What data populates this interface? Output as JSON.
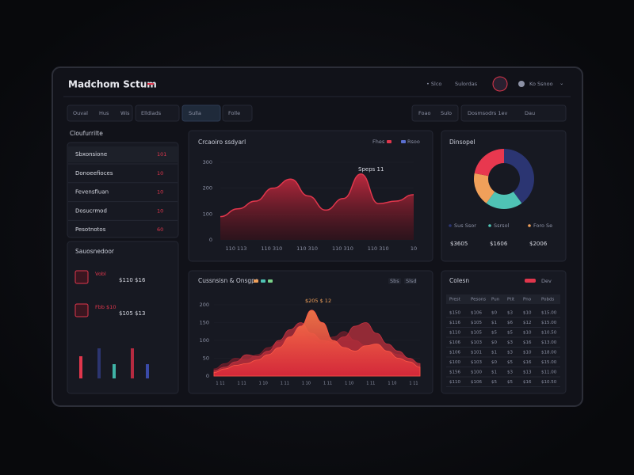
{
  "header": {
    "title": "Madchom Sctum",
    "nav": [
      "• Slco",
      "Sulordas"
    ],
    "user": "Ko Ssnoo"
  },
  "toolbar": {
    "tabs": [
      "Ouval",
      "Hus",
      "Wis",
      "Elldiads",
      "Sulla",
      "Folle"
    ],
    "right": [
      "Foao",
      "Sulo",
      "Dosmsodrs 1ev",
      "Dau"
    ]
  },
  "sidebar": {
    "title": "Cloufurrilte",
    "list": [
      {
        "label": "Sbxonsione",
        "value": "101"
      },
      {
        "label": "Donoeefioces",
        "value": "10"
      },
      {
        "label": "Fevensfiuan",
        "value": "10"
      },
      {
        "label": "Dosucrmod",
        "value": "10"
      },
      {
        "label": "Pesotnotos",
        "value": "60"
      }
    ],
    "panel_title": "Sauosnedoor",
    "items": [
      {
        "label": "Vobl",
        "value": "$110 $16"
      },
      {
        "label": "Fbb $10",
        "value": "$105 $13"
      }
    ],
    "bars": {
      "values": [
        28,
        38,
        18,
        38,
        18
      ],
      "colors": [
        "#e0364c",
        "#2c3570",
        "#3fb3a6",
        "#b52a40",
        "#3a4aa8"
      ],
      "ylim": [
        0,
        40
      ]
    }
  },
  "line_chart": {
    "type": "area",
    "title": "Crcaoiro ssdyarl",
    "legend": [
      {
        "name": "Fhes",
        "color": "#e0364c"
      },
      {
        "name": "Rsoo",
        "color": "#5a6fd0"
      }
    ],
    "annotation": "Speps 11",
    "categories": [
      "110 113",
      "110 310",
      "110 310",
      "110 310",
      "110 310",
      "10"
    ],
    "values": [
      90,
      120,
      150,
      200,
      235,
      170,
      115,
      160,
      255,
      140,
      150,
      175
    ],
    "ylim": [
      0,
      300
    ],
    "yticks": [
      0,
      100,
      200,
      300
    ],
    "color": "#e0364c"
  },
  "donut": {
    "type": "pie",
    "title": "Dinsopel",
    "values": [
      40,
      20,
      18,
      22
    ],
    "colors": [
      "#2b3572",
      "#4fc3b5",
      "#f0a05a",
      "#e8384f"
    ],
    "legend": [
      {
        "label": "Sus Ssor",
        "value": "$3605"
      },
      {
        "label": "Ssrsol",
        "value": "$1606"
      },
      {
        "label": "Foro Se",
        "value": "$2006"
      }
    ]
  },
  "area_chart": {
    "type": "area",
    "title": "Cussnsisn & Onsgps",
    "legend_colors": [
      "#f0a05a",
      "#4fc3b5",
      "#7bd389"
    ],
    "right_labels": [
      "Sbs",
      "Slsd"
    ],
    "annotation": "$205 $ 12",
    "categories": [
      "1 11",
      "1 11",
      "1 10",
      "1 11",
      "1 10",
      "1 11",
      "1 10",
      "1 11",
      "1 10",
      "1 11"
    ],
    "ylim": [
      0,
      200
    ],
    "yticks": [
      0,
      50,
      100,
      150,
      200
    ],
    "series": [
      {
        "color": "#7a1f2c",
        "values": [
          20,
          35,
          50,
          45,
          60,
          80,
          95,
          110,
          120,
          100,
          90,
          110,
          125,
          100,
          85,
          90,
          70,
          60,
          50,
          30
        ]
      },
      {
        "color": "#c8323f",
        "values": [
          15,
          25,
          40,
          60,
          55,
          70,
          100,
          130,
          150,
          120,
          100,
          95,
          110,
          140,
          150,
          120,
          90,
          70,
          50,
          35
        ]
      },
      {
        "color": "#ff5646",
        "values": [
          10,
          20,
          30,
          35,
          45,
          60,
          80,
          110,
          140,
          185,
          150,
          100,
          80,
          70,
          85,
          90,
          70,
          50,
          40,
          25
        ]
      }
    ]
  },
  "table": {
    "title": "Colesn",
    "tag": "Dev",
    "header": [
      "Prest",
      "Pesons",
      "Pun",
      "Ptit",
      "Pno",
      "Pobds"
    ],
    "rows": [
      [
        "$150",
        "$106",
        "$0",
        "$3",
        "$10",
        "$15.00"
      ],
      [
        "$116",
        "$105",
        "$1",
        "$6",
        "$12",
        "$15.00"
      ],
      [
        "$110",
        "$105",
        "$5",
        "$5",
        "$10",
        "$10.50"
      ],
      [
        "$106",
        "$103",
        "$0",
        "$3",
        "$16",
        "$13.00"
      ],
      [
        "$106",
        "$101",
        "$1",
        "$3",
        "$10",
        "$18.00"
      ],
      [
        "$100",
        "$103",
        "$0",
        "$5",
        "$16",
        "$15.00"
      ],
      [
        "$156",
        "$100",
        "$1",
        "$3",
        "$13",
        "$11.00"
      ],
      [
        "$110",
        "$106",
        "$5",
        "$5",
        "$16",
        "$10.50"
      ]
    ]
  }
}
